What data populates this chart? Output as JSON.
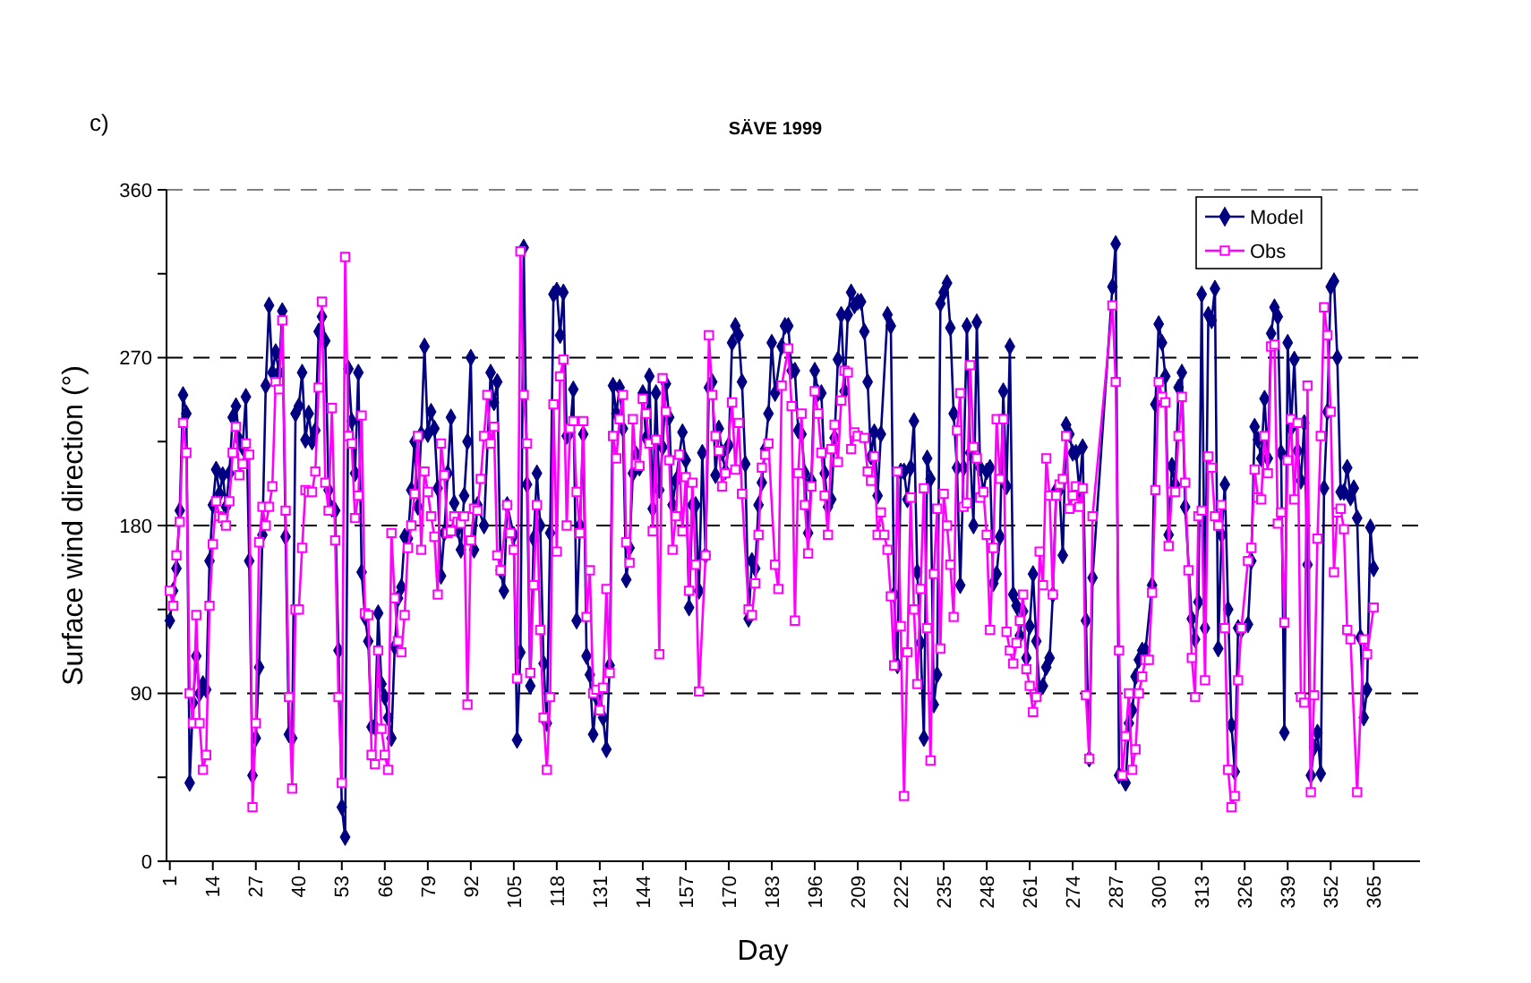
{
  "chart_data": {
    "type": "line",
    "title": "SÄVE 1999",
    "xlabel": "Day",
    "ylabel": "Surface wind direction (°)",
    "annotations": [
      "c)"
    ],
    "xlim": [
      0,
      379
    ],
    "xticks": [
      1,
      14,
      27,
      40,
      53,
      66,
      79,
      92,
      105,
      118,
      131,
      144,
      157,
      170,
      183,
      196,
      209,
      222,
      235,
      248,
      261,
      274,
      287,
      300,
      313,
      326,
      339,
      352,
      365
    ],
    "ylim": [
      0,
      360
    ],
    "yticks": [
      0,
      {
        "value": 45,
        "label": null
      },
      90,
      {
        "value": 135,
        "label": null
      },
      180,
      {
        "value": 225,
        "label": null
      },
      270,
      {
        "value": 315,
        "label": null
      },
      360
    ],
    "grid": "y",
    "legend": "top right",
    "series": [
      {
        "name": "Model",
        "color": "#000080",
        "marker": "diamond",
        "x": [
          1,
          2,
          3,
          4,
          5,
          6,
          7,
          8,
          9,
          10,
          11,
          12,
          13,
          14,
          15,
          16,
          17,
          18,
          19,
          20,
          21,
          22,
          23,
          24,
          25,
          26,
          27,
          28,
          29,
          30,
          31,
          32,
          33,
          34,
          35,
          36,
          37,
          38,
          39,
          40,
          41,
          42,
          43,
          44,
          45,
          46,
          47,
          48,
          49,
          50,
          51,
          52,
          53,
          54,
          55,
          56,
          57,
          58,
          59,
          60,
          61,
          62,
          63,
          64,
          65,
          66,
          67,
          68,
          69,
          70,
          71,
          72,
          73,
          74,
          75,
          76,
          77,
          78,
          79,
          80,
          81,
          82,
          83,
          84,
          85,
          86,
          87,
          88,
          89,
          90,
          91,
          92,
          93,
          94,
          96,
          98,
          99,
          100,
          101,
          102,
          103,
          105,
          106,
          107,
          108,
          109,
          110,
          111,
          112,
          113,
          114,
          115,
          116,
          117,
          118,
          119,
          120,
          121,
          122,
          123,
          124,
          125,
          126,
          127,
          128,
          129,
          130,
          131,
          132,
          133,
          134,
          135,
          136,
          137,
          138,
          139,
          140,
          141,
          142,
          143,
          144,
          145,
          146,
          147,
          148,
          149,
          150,
          151,
          152,
          153,
          154,
          156,
          157,
          158,
          159,
          160,
          161,
          162,
          163,
          164,
          165,
          166,
          167,
          168,
          169,
          170,
          171,
          172,
          173,
          174,
          175,
          176,
          177,
          178,
          179,
          180,
          181,
          182,
          183,
          184,
          186,
          187,
          188,
          189,
          190,
          191,
          192,
          193,
          194,
          195,
          196,
          197,
          198,
          199,
          200,
          201,
          202,
          203,
          204,
          205,
          206,
          207,
          208,
          209,
          210,
          211,
          212,
          213,
          214,
          215,
          216,
          218,
          219,
          220,
          221,
          222,
          223,
          224,
          225,
          226,
          227,
          228,
          229,
          230,
          231,
          232,
          233,
          234,
          235,
          236,
          237,
          238,
          239,
          240,
          241,
          242,
          243,
          244,
          245,
          246,
          247,
          248,
          249,
          250,
          251,
          252,
          253,
          254,
          255,
          256,
          257,
          258,
          259,
          260,
          261,
          262,
          263,
          264,
          265,
          266,
          267,
          268,
          269,
          270,
          271,
          272,
          273,
          274,
          275,
          276,
          277,
          278,
          279,
          280,
          286,
          287,
          288,
          290,
          291,
          292,
          293,
          294,
          295,
          296,
          298,
          299,
          300,
          301,
          302,
          303,
          304,
          305,
          306,
          307,
          308,
          310,
          311,
          312,
          313,
          314,
          315,
          316,
          317,
          318,
          319,
          320,
          321,
          322,
          323,
          324,
          325,
          327,
          328,
          329,
          330,
          331,
          332,
          333,
          334,
          335,
          336,
          337,
          338,
          339,
          340,
          341,
          342,
          343,
          344,
          345,
          346,
          347,
          348,
          349,
          350,
          351,
          352,
          353,
          354,
          355,
          356,
          357,
          358,
          359,
          360,
          361,
          362,
          363,
          364,
          365
        ],
        "values": [
          129,
          145,
          157,
          188,
          250,
          240,
          42,
          85,
          110,
          90,
          95,
          92,
          161,
          191,
          210,
          197,
          207,
          190,
          208,
          238,
          244,
          226,
          222,
          249,
          161,
          46,
          66,
          104,
          175,
          255,
          298,
          262,
          273,
          262,
          295,
          174,
          68,
          66,
          240,
          244,
          262,
          226,
          240,
          225,
          231,
          284,
          292,
          279,
          199,
          189,
          188,
          113,
          29,
          13,
          264,
          236,
          208,
          262,
          155,
          131,
          118,
          72,
          72,
          133,
          95,
          88,
          77,
          66,
          115,
          141,
          147,
          174,
          173,
          199,
          225,
          190,
          229,
          276,
          229,
          241,
          232,
          200,
          153,
          176,
          208,
          238,
          192,
          178,
          167,
          196,
          225,
          270,
          167,
          191,
          180,
          262,
          246,
          257,
          156,
          145,
          191,
          175,
          65,
          112,
          329,
          202,
          94,
          173,
          208,
          180,
          106,
          74,
          176,
          304,
          306,
          282,
          305,
          228,
          230,
          253,
          129,
          180,
          229,
          110,
          100,
          68,
          88,
          91,
          77,
          60,
          105,
          255,
          240,
          254,
          232,
          151,
          168,
          208,
          218,
          211,
          251,
          227,
          260,
          189,
          251,
          199,
          222,
          256,
          238,
          191,
          204,
          230,
          215,
          136,
          191,
          191,
          145,
          219,
          164,
          254,
          257,
          207,
          232,
          219,
          209,
          223,
          278,
          287,
          282,
          257,
          213,
          130,
          161,
          157,
          191,
          203,
          221,
          240,
          278,
          251,
          276,
          287,
          287,
          263,
          263,
          231,
          229,
          208,
          176,
          204,
          263,
          251,
          251,
          208,
          190,
          194,
          227,
          269,
          293,
          252,
          293,
          305,
          298,
          300,
          300,
          284,
          257,
          217,
          230,
          196,
          229,
          293,
          287,
          143,
          105,
          209,
          209,
          194,
          211,
          236,
          155,
          117,
          66,
          216,
          205,
          84,
          100,
          299,
          305,
          310,
          286,
          240,
          211,
          148,
          211,
          287,
          219,
          180,
          289,
          211,
          198,
          209,
          211,
          149,
          154,
          174,
          252,
          201,
          276,
          143,
          137,
          121,
          134,
          109,
          126,
          154,
          118,
          92,
          94,
          104,
          109,
          143,
          199,
          199,
          164,
          234,
          229,
          219,
          219,
          199,
          222,
          129,
          55,
          152,
          308,
          331,
          46,
          42,
          74,
          81,
          99,
          108,
          113,
          113,
          148,
          245,
          288,
          278,
          260,
          175,
          212,
          202,
          254,
          262,
          190,
          130,
          119,
          139,
          304,
          125,
          293,
          290,
          307,
          114,
          175,
          202,
          135,
          73,
          48,
          125,
          124,
          127,
          161,
          233,
          226,
          216,
          248,
          216,
          283,
          297,
          292,
          219,
          69,
          278,
          232,
          269,
          220,
          204,
          235,
          159,
          46,
          61,
          69,
          47,
          200,
          241,
          308,
          311,
          270,
          198,
          198,
          211,
          195,
          200,
          184,
          120,
          77,
          92,
          179,
          157
        ]
      },
      {
        "name": "Obs",
        "color": "#ff00ff",
        "marker": "square",
        "x": [
          1,
          2,
          3,
          4,
          5,
          6,
          7,
          8,
          9,
          10,
          11,
          12,
          13,
          14,
          15,
          16,
          17,
          18,
          19,
          20,
          21,
          22,
          23,
          24,
          25,
          26,
          27,
          28,
          29,
          30,
          31,
          32,
          33,
          34,
          35,
          36,
          37,
          38,
          39,
          40,
          41,
          42,
          43,
          44,
          45,
          46,
          47,
          48,
          49,
          50,
          51,
          52,
          53,
          54,
          55,
          56,
          57,
          58,
          59,
          60,
          61,
          62,
          63,
          64,
          65,
          66,
          67,
          68,
          69,
          70,
          71,
          72,
          73,
          74,
          75,
          76,
          77,
          78,
          79,
          80,
          81,
          82,
          83,
          84,
          85,
          86,
          87,
          88,
          89,
          90,
          91,
          92,
          93,
          94,
          95,
          96,
          97,
          98,
          99,
          100,
          101,
          103,
          104,
          105,
          106,
          107,
          108,
          109,
          110,
          111,
          112,
          113,
          114,
          115,
          116,
          117,
          118,
          119,
          120,
          121,
          122,
          123,
          124,
          125,
          126,
          127,
          128,
          129,
          130,
          131,
          132,
          133,
          134,
          135,
          136,
          137,
          138,
          139,
          140,
          141,
          142,
          143,
          144,
          145,
          146,
          147,
          148,
          149,
          150,
          151,
          152,
          153,
          154,
          155,
          156,
          157,
          158,
          159,
          160,
          161,
          163,
          164,
          165,
          166,
          167,
          168,
          169,
          171,
          172,
          173,
          174,
          176,
          177,
          178,
          179,
          180,
          181,
          182,
          184,
          185,
          186,
          188,
          189,
          190,
          191,
          192,
          193,
          194,
          195,
          196,
          197,
          198,
          199,
          200,
          201,
          202,
          203,
          204,
          205,
          206,
          207,
          208,
          209,
          211,
          212,
          213,
          214,
          215,
          216,
          217,
          218,
          219,
          220,
          221,
          222,
          223,
          224,
          225,
          226,
          227,
          228,
          229,
          230,
          231,
          232,
          233,
          234,
          235,
          236,
          237,
          238,
          239,
          240,
          241,
          242,
          243,
          244,
          245,
          246,
          247,
          248,
          249,
          250,
          251,
          252,
          253,
          254,
          255,
          256,
          257,
          258,
          259,
          260,
          261,
          262,
          263,
          264,
          265,
          266,
          267,
          268,
          269,
          270,
          271,
          272,
          273,
          274,
          275,
          276,
          277,
          278,
          279,
          280,
          286,
          287,
          288,
          289,
          290,
          291,
          292,
          293,
          294,
          295,
          296,
          297,
          298,
          299,
          300,
          301,
          302,
          303,
          304,
          305,
          306,
          307,
          308,
          309,
          310,
          311,
          312,
          313,
          314,
          315,
          316,
          317,
          318,
          319,
          320,
          321,
          322,
          323,
          324,
          325,
          327,
          328,
          329,
          330,
          331,
          332,
          333,
          334,
          335,
          336,
          337,
          338,
          339,
          340,
          341,
          342,
          343,
          344,
          345,
          346,
          347,
          348,
          349,
          350,
          351,
          352,
          353,
          354,
          355,
          356,
          357,
          358,
          360,
          362,
          363,
          365
        ],
        "values": [
          145,
          137,
          164,
          182,
          235,
          219,
          90,
          74,
          132,
          74,
          49,
          57,
          137,
          170,
          193,
          185,
          184,
          180,
          193,
          219,
          233,
          207,
          213,
          224,
          218,
          29,
          74,
          171,
          190,
          180,
          190,
          201,
          257,
          253,
          290,
          188,
          88,
          39,
          135,
          135,
          168,
          199,
          198,
          198,
          209,
          254,
          300,
          203,
          188,
          243,
          172,
          88,
          42,
          324,
          228,
          224,
          184,
          196,
          239,
          133,
          132,
          57,
          52,
          113,
          71,
          57,
          49,
          176,
          141,
          118,
          112,
          132,
          168,
          180,
          197,
          228,
          167,
          209,
          198,
          185,
          174,
          143,
          224,
          207,
          176,
          177,
          185,
          182,
          181,
          185,
          84,
          172,
          189,
          188,
          205,
          228,
          250,
          224,
          233,
          164,
          156,
          191,
          176,
          167,
          98,
          327,
          250,
          224,
          101,
          148,
          191,
          124,
          77,
          49,
          88,
          245,
          166,
          260,
          269,
          180,
          232,
          236,
          198,
          176,
          236,
          131,
          156,
          90,
          92,
          81,
          93,
          146,
          101,
          228,
          216,
          237,
          250,
          171,
          160,
          237,
          213,
          212,
          248,
          240,
          224,
          177,
          226,
          111,
          259,
          241,
          215,
          167,
          185,
          218,
          177,
          206,
          145,
          203,
          159,
          91,
          164,
          282,
          250,
          228,
          220,
          201,
          208,
          246,
          210,
          235,
          197,
          135,
          132,
          149,
          175,
          211,
          218,
          224,
          159,
          146,
          255,
          275,
          244,
          129,
          208,
          240,
          191,
          165,
          201,
          252,
          240,
          219,
          196,
          175,
          221,
          234,
          214,
          247,
          263,
          262,
          221,
          230,
          228,
          227,
          209,
          204,
          217,
          175,
          187,
          175,
          167,
          142,
          105,
          209,
          126,
          35,
          112,
          195,
          135,
          95,
          146,
          200,
          125,
          54,
          154,
          189,
          114,
          197,
          180,
          159,
          131,
          231,
          251,
          190,
          192,
          266,
          222,
          216,
          195,
          198,
          175,
          124,
          168,
          237,
          205,
          237,
          123,
          113,
          106,
          117,
          129,
          143,
          103,
          94,
          80,
          88,
          166,
          148,
          216,
          196,
          143,
          196,
          202,
          205,
          228,
          189,
          196,
          201,
          190,
          200,
          89,
          55,
          185,
          298,
          257,
          113,
          46,
          67,
          90,
          49,
          60,
          90,
          99,
          108,
          108,
          144,
          199,
          257,
          249,
          246,
          169,
          198,
          198,
          228,
          249,
          203,
          156,
          109,
          88,
          185,
          188,
          97,
          217,
          211,
          185,
          180,
          191,
          125,
          49,
          29,
          35,
          97,
          125,
          161,
          168,
          210,
          195,
          194,
          228,
          208,
          276,
          277,
          181,
          187,
          128,
          215,
          237,
          194,
          235,
          88,
          85,
          255,
          37,
          89,
          173,
          228,
          297,
          282,
          241,
          155,
          187,
          189,
          178,
          124,
          119,
          37,
          119,
          111,
          136
        ]
      }
    ]
  }
}
